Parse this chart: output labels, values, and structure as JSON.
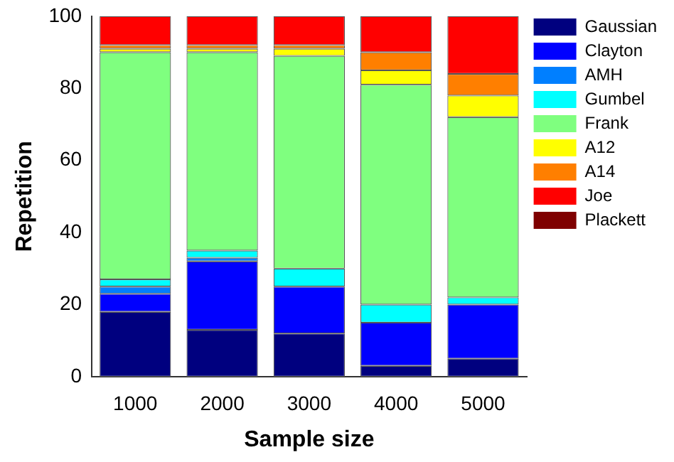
{
  "chart_data": {
    "type": "bar",
    "stacked": true,
    "xlabel": "Sample size",
    "ylabel": "Repetition",
    "categories": [
      "1000",
      "2000",
      "3000",
      "4000",
      "5000"
    ],
    "series": [
      {
        "name": "Gaussian",
        "color": "#00007f",
        "values": [
          18,
          13,
          12,
          3,
          5
        ]
      },
      {
        "name": "Clayton",
        "color": "#0000ff",
        "values": [
          5,
          19,
          13,
          12,
          15
        ]
      },
      {
        "name": "AMH",
        "color": "#007fff",
        "values": [
          2,
          1,
          0,
          0,
          0
        ]
      },
      {
        "name": "Gumbel",
        "color": "#00ffff",
        "values": [
          2,
          2,
          5,
          5,
          2
        ]
      },
      {
        "name": "Frank",
        "color": "#7fff7f",
        "values": [
          63,
          55,
          59,
          61,
          50
        ]
      },
      {
        "name": "A12",
        "color": "#ffff00",
        "values": [
          1,
          1,
          2,
          4,
          6
        ]
      },
      {
        "name": "A14",
        "color": "#ff7f00",
        "values": [
          1,
          1,
          1,
          5,
          6
        ]
      },
      {
        "name": "Joe",
        "color": "#ff0000",
        "values": [
          8,
          8,
          8,
          10,
          16
        ]
      },
      {
        "name": "Plackett",
        "color": "#7f0000",
        "values": [
          0,
          0,
          0,
          0,
          0
        ]
      }
    ],
    "ylim": [
      0,
      100
    ],
    "yticks": [
      0,
      20,
      40,
      60,
      80,
      100
    ],
    "grid": false,
    "legend": "right"
  }
}
